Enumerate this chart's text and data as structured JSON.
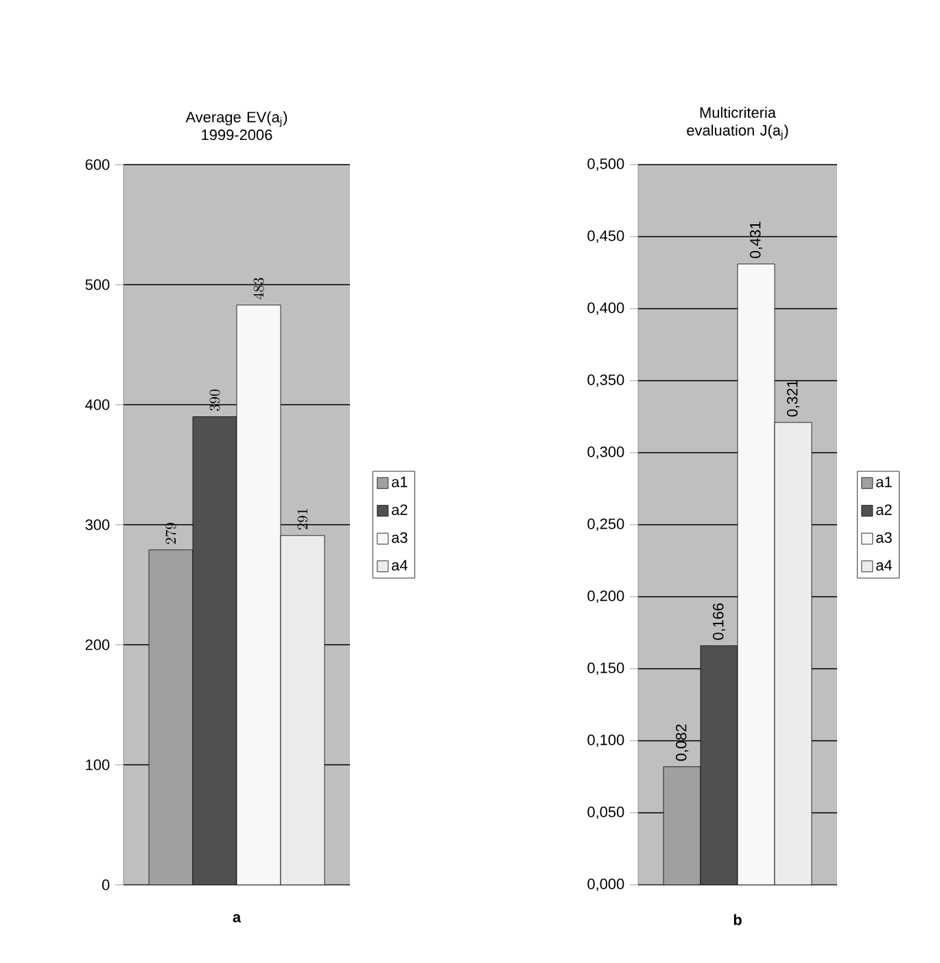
{
  "chart_data": [
    {
      "type": "bar",
      "title": "Average EV(a$_{j}$) 1999-2006",
      "xlabel": "a",
      "categories": [
        null
      ],
      "series": [
        {
          "name": "a1",
          "color": "#a0a0a0",
          "values": [
            279
          ]
        },
        {
          "name": "a2",
          "color": "#505050",
          "values": [
            390
          ]
        },
        {
          "name": "a3",
          "color": "#f8f8f8",
          "values": [
            483
          ]
        },
        {
          "name": "a4",
          "color": "#ececec",
          "values": [
            291
          ]
        }
      ],
      "ylim": [
        0,
        600
      ],
      "yticks": [
        0,
        100,
        200,
        300,
        400,
        500,
        600
      ],
      "grid": "y",
      "legend": "right",
      "data_labels": true
    },
    {
      "type": "bar",
      "title": "Multicriteria evaluation J(a$_{j}$)",
      "xlabel": "b",
      "categories": [
        null
      ],
      "series": [
        {
          "name": "a1",
          "color": "#a0a0a0",
          "values": [
            0.082
          ],
          "value_labels": [
            "0,082"
          ]
        },
        {
          "name": "a2",
          "color": "#505050",
          "values": [
            0.166
          ],
          "value_labels": [
            "0,166"
          ]
        },
        {
          "name": "a3",
          "color": "#f8f8f8",
          "values": [
            0.431
          ],
          "value_labels": [
            "0,431"
          ]
        },
        {
          "name": "a4",
          "color": "#ececec",
          "values": [
            0.321
          ],
          "value_labels": [
            "0,321"
          ]
        }
      ],
      "ylim": [
        0,
        0.5
      ],
      "yticks": [
        {
          "value": 0,
          "label": "0,000"
        },
        {
          "value": 0.05,
          "label": "0,050"
        },
        {
          "value": 0.1,
          "label": "0,100"
        },
        {
          "value": 0.15,
          "label": "0,150"
        },
        {
          "value": 0.2,
          "label": "0,200"
        },
        {
          "value": 0.25,
          "label": "0,250"
        },
        {
          "value": 0.3,
          "label": "0,300"
        },
        {
          "value": 0.35,
          "label": "0,350"
        },
        {
          "value": 0.4,
          "label": "0,400"
        },
        {
          "value": 0.45,
          "label": "0,450"
        },
        {
          "value": 0.5,
          "label": "0,500"
        }
      ],
      "grid": "y",
      "legend": "right"
    }
  ]
}
